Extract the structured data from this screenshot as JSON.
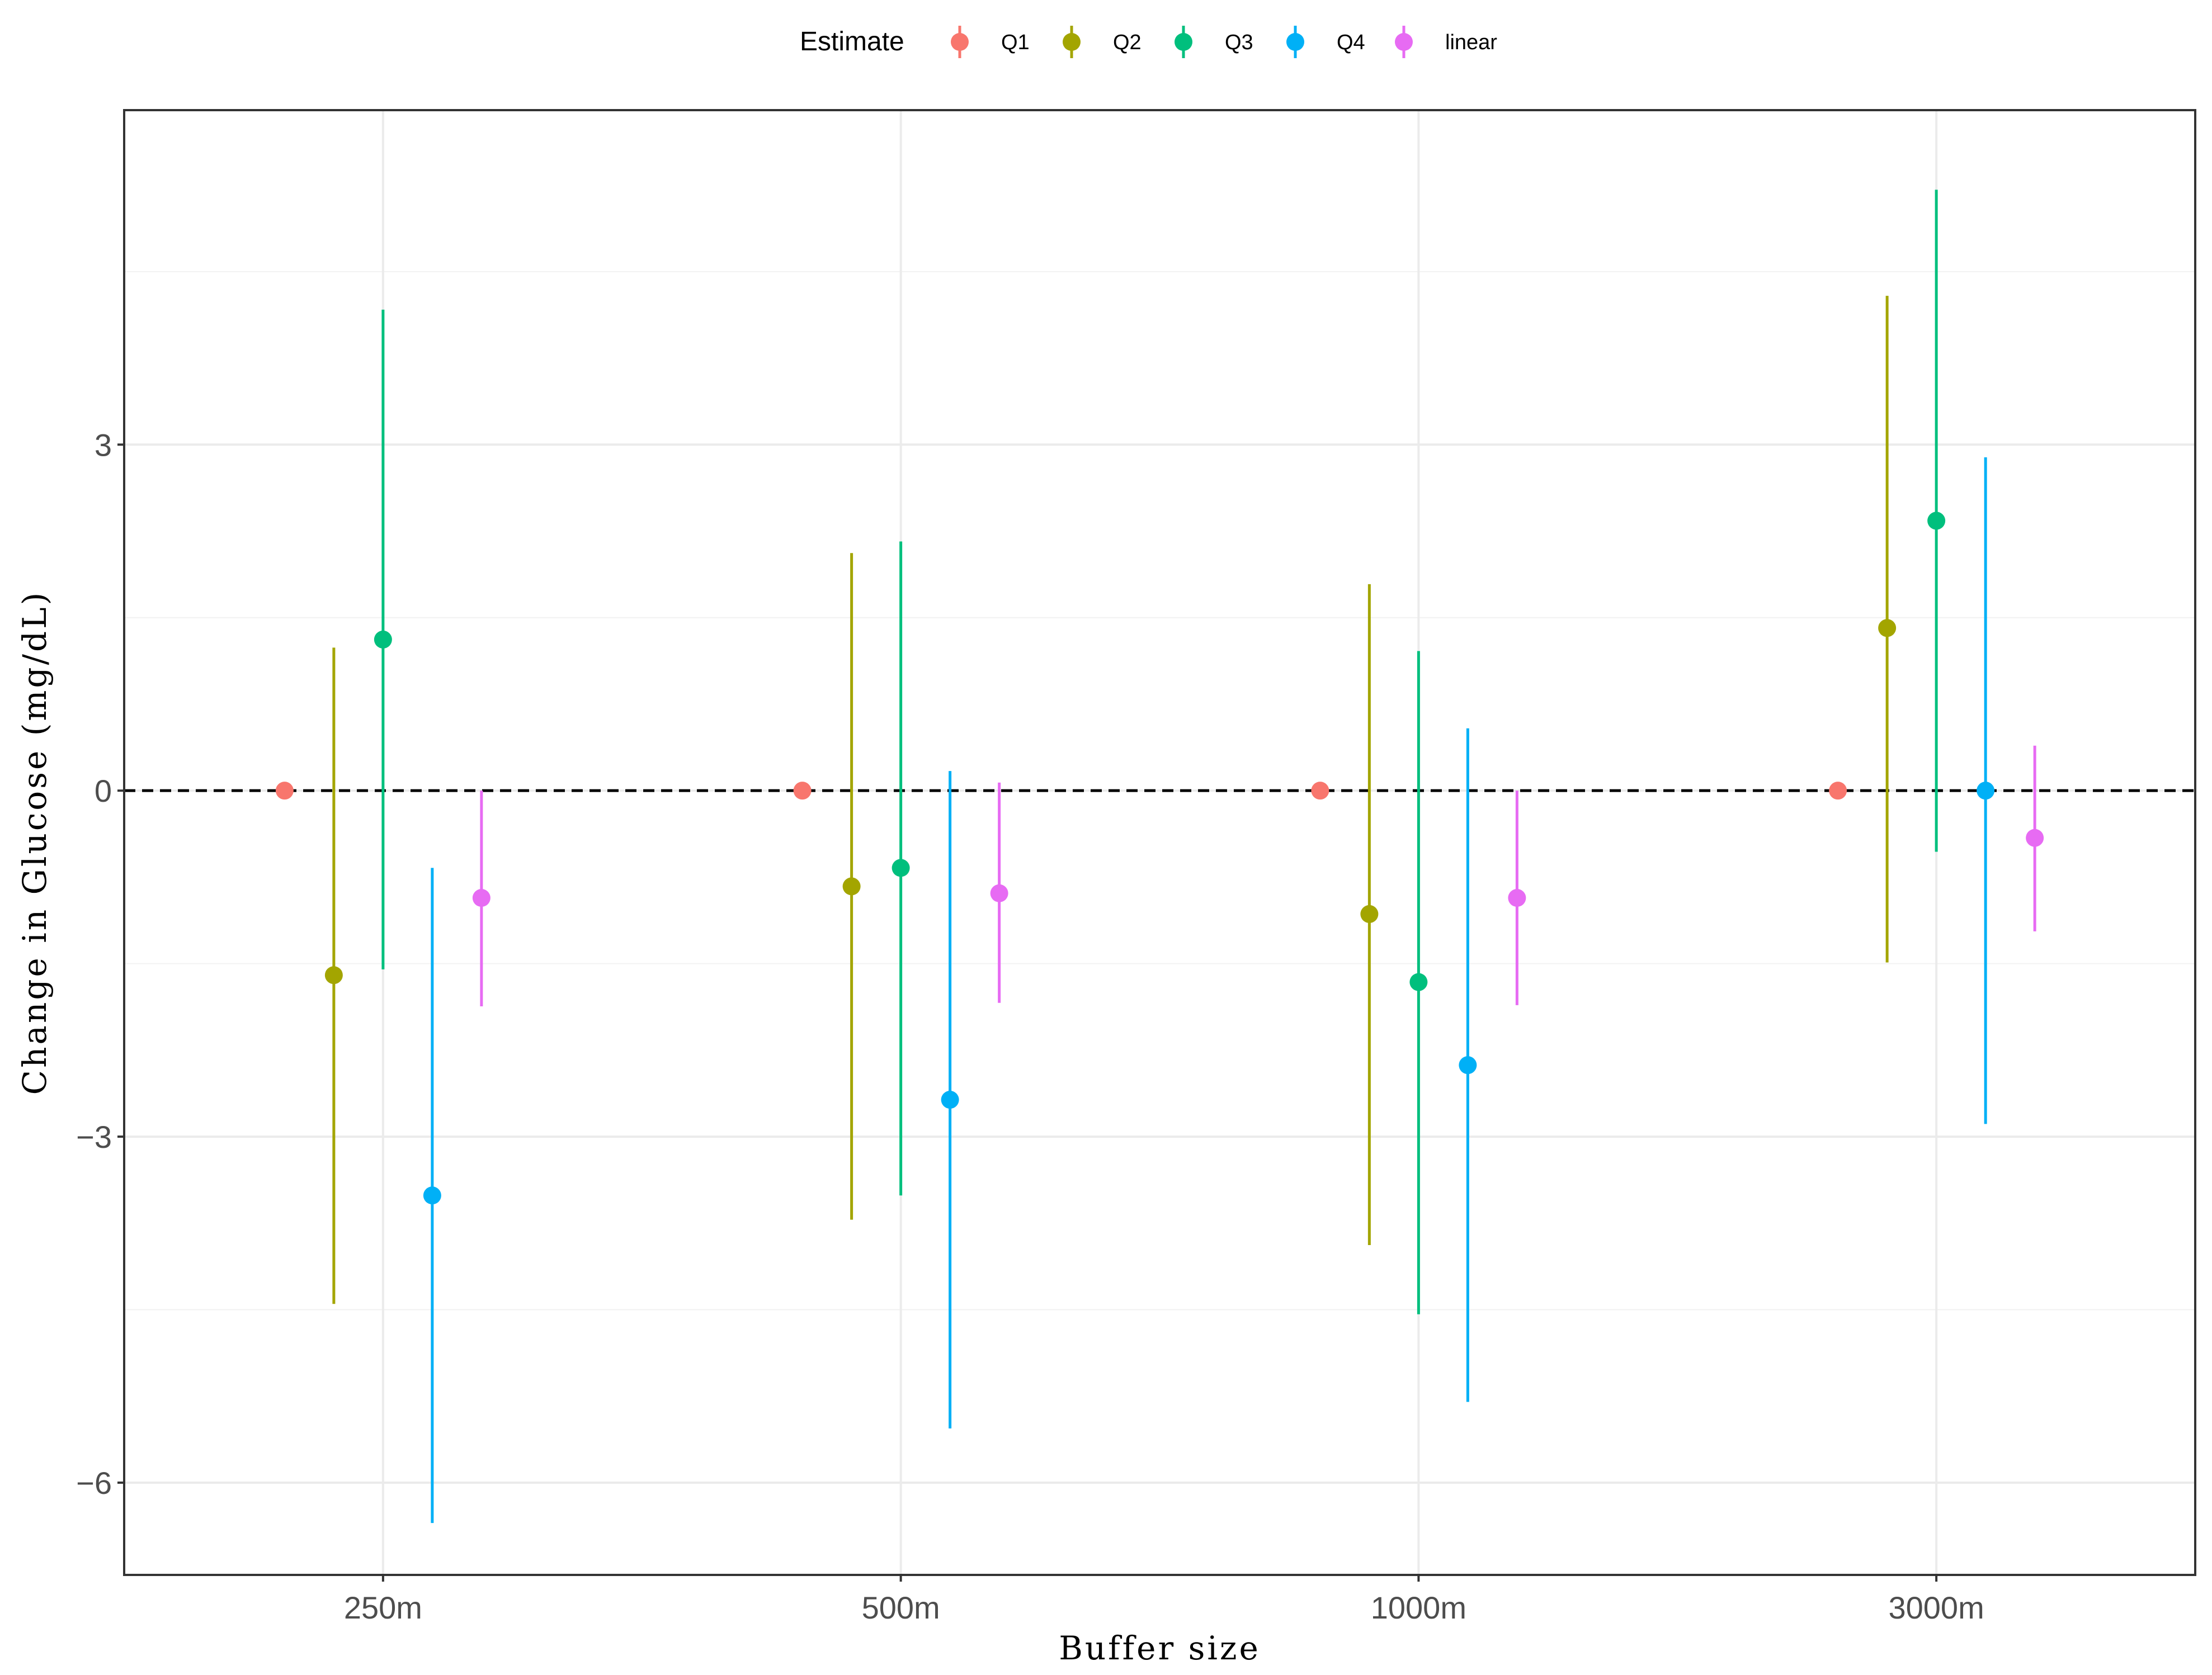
{
  "chart_data": {
    "type": "scatter",
    "subtype": "point-range",
    "title": "",
    "xlabel": "Buffer size",
    "ylabel": "Change in Glucose (mg/dL)",
    "categories": [
      "250m",
      "500m",
      "1000m",
      "3000m"
    ],
    "ylim": [
      -6.8,
      5.9
    ],
    "yticks": [
      -6,
      -3,
      0,
      3
    ],
    "ytick_labels": [
      "−6",
      "−3",
      "0",
      "3"
    ],
    "reference_line": 0,
    "legend": {
      "title": "Estimate",
      "position": "top"
    },
    "series": [
      {
        "name": "Q1",
        "color": "#F8766D",
        "values": [
          0,
          0,
          0,
          0
        ],
        "lower": [
          0,
          0,
          0,
          0
        ],
        "upper": [
          0,
          0,
          0,
          0
        ]
      },
      {
        "name": "Q2",
        "color": "#A3A500",
        "values": [
          -1.6,
          -0.83,
          -1.07,
          1.41
        ],
        "lower": [
          -4.45,
          -3.72,
          -3.94,
          -1.49
        ],
        "upper": [
          1.24,
          2.06,
          1.79,
          4.29
        ]
      },
      {
        "name": "Q3",
        "color": "#00BF7D",
        "values": [
          1.31,
          -0.67,
          -1.66,
          2.34
        ],
        "lower": [
          -1.55,
          -3.51,
          -4.54,
          -0.53
        ],
        "upper": [
          4.17,
          2.16,
          1.21,
          5.21
        ]
      },
      {
        "name": "Q4",
        "color": "#00B0F6",
        "values": [
          -3.51,
          -2.68,
          -2.38,
          0
        ],
        "lower": [
          -6.35,
          -5.53,
          -5.3,
          -2.89
        ],
        "upper": [
          -0.67,
          0.17,
          0.54,
          2.89
        ]
      },
      {
        "name": "linear",
        "color": "#E76BF3",
        "values": [
          -0.93,
          -0.89,
          -0.93,
          -0.41
        ],
        "lower": [
          -1.87,
          -1.84,
          -1.86,
          -1.22
        ],
        "upper": [
          0,
          0.07,
          0,
          0.39
        ]
      }
    ]
  }
}
